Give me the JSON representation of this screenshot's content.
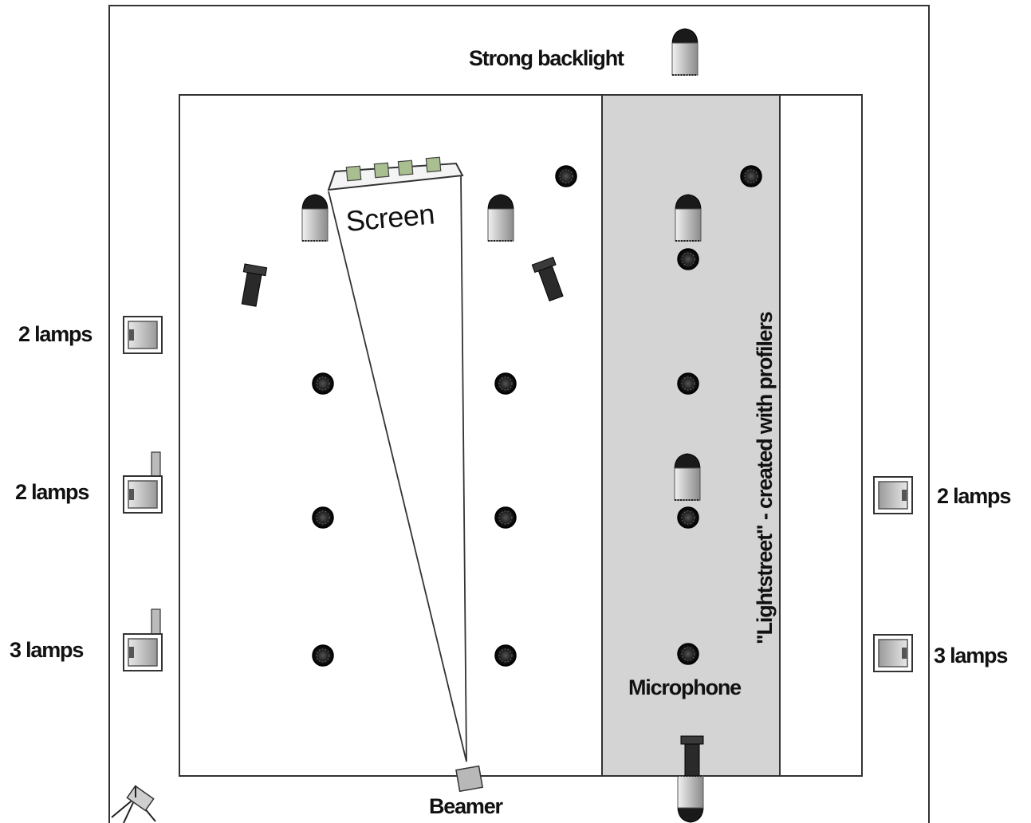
{
  "labels": {
    "strong_backlight": "Strong backlight",
    "screen": "Screen",
    "lightstreet": "\"Lightstreet\" - created with profilers",
    "microphone": "Microphone",
    "beamer": "Beamer",
    "left_lamps_1": "2 lamps",
    "left_lamps_2": "2 lamps",
    "left_lamps_3": "3 lamps",
    "right_lamps_1": "2 lamps",
    "right_lamps_2": "3 lamps"
  },
  "colors": {
    "outline": "#333333",
    "lightstreet_fill": "#d4d4d4",
    "screen_lamp_fill": "#a9bf8f",
    "profiler_fill": "#2a2a2a",
    "spot_fill": "#1a1a1a",
    "beamer_fill": "#b8b8b8"
  },
  "icons": {
    "spotlight": "round-spotlight-icon",
    "backlight": "cylinder-light-icon",
    "profiler": "profiler-spot-icon",
    "floodlight": "floodlight-box-icon",
    "beamer": "projector-icon",
    "camera": "camera-tripod-icon"
  }
}
